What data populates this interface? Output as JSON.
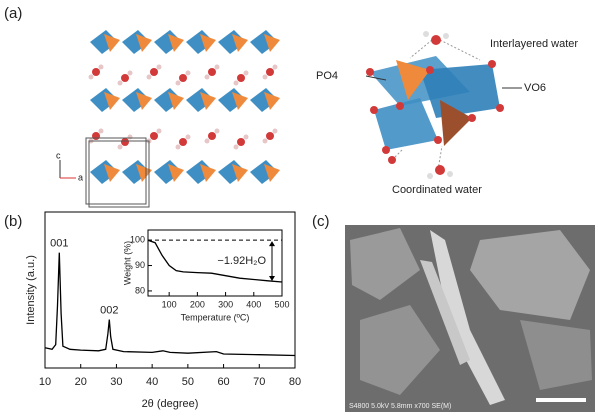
{
  "panel_a": {
    "label": "(a)",
    "axis_c": "c",
    "axis_a": "a",
    "po4": "PO4",
    "vo6": "VO6",
    "interlayered": "Interlayered water",
    "coordinated": "Coordinated water"
  },
  "chart_data": [
    {
      "type": "line",
      "label": "(b)",
      "xlabel": "2θ (degree)",
      "ylabel": "Intensity (a.u.)",
      "color": "#000000",
      "x": [
        10,
        12,
        13,
        13.5,
        14,
        14.5,
        15,
        17,
        20,
        25,
        27,
        27.6,
        28,
        28.4,
        29,
        32,
        40,
        43,
        45,
        50,
        58,
        60,
        70,
        80
      ],
      "values": [
        13,
        12,
        15,
        40,
        74,
        35,
        14,
        12,
        11.5,
        11,
        12,
        22,
        31,
        20,
        12,
        10.5,
        10,
        11,
        10,
        9.5,
        10.5,
        9,
        8.5,
        8
      ],
      "xlim": [
        10,
        80
      ],
      "ylim": [
        0,
        100
      ],
      "xticks": [
        10,
        20,
        30,
        40,
        50,
        60,
        70,
        80
      ],
      "annotations": [
        {
          "text": "001",
          "x": 14
        },
        {
          "text": "002",
          "x": 28
        }
      ]
    },
    {
      "type": "line",
      "xlabel": "Temperature (ºC)",
      "ylabel": "Weight (%)",
      "color": "#000000",
      "x": [
        25,
        50,
        75,
        100,
        125,
        150,
        200,
        250,
        300,
        350,
        400,
        450,
        500
      ],
      "values": [
        100,
        99,
        94,
        90,
        88,
        87.5,
        87.2,
        87,
        86,
        85,
        84.5,
        84,
        83.5
      ],
      "xlim": [
        25,
        500
      ],
      "ylim": [
        78,
        104
      ],
      "xticks": [
        100,
        200,
        300,
        400,
        500
      ],
      "yticks": [
        80,
        90,
        100
      ],
      "hline": 100,
      "annotation": "−1.92H₂O"
    }
  ],
  "panel_c": {
    "label": "(c)",
    "caption": "S4800 5.0kV 5.8mm x700 SE(M)"
  }
}
